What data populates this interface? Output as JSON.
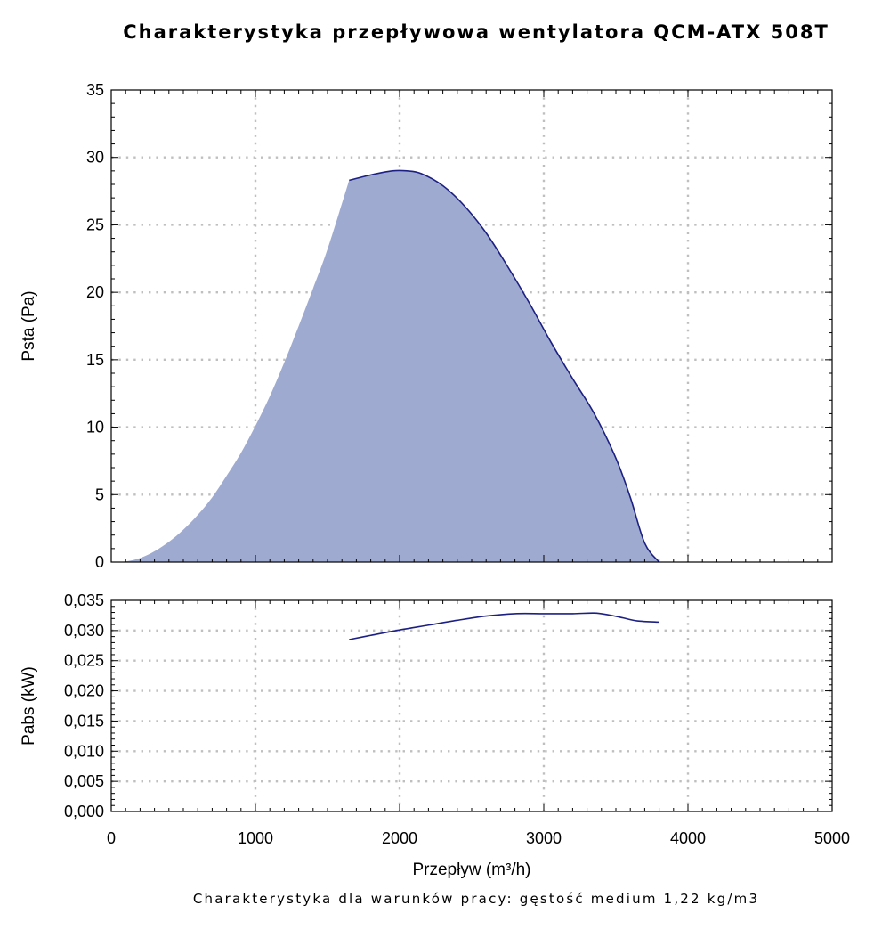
{
  "title": "Charakterystyka przepływowa wentylatora QCM-ATX 508T",
  "footnote": "Charakterystyka dla warunków pracy: gęstość medium 1,22 kg/m3",
  "colors": {
    "fill": "#9faad0",
    "line": "#1c2083",
    "grid": "#bfbfbf"
  },
  "chart_data": [
    {
      "type": "area",
      "xlabel": "",
      "ylabel": "Psta (Pa)",
      "xlim": [
        0,
        5000
      ],
      "ylim": [
        0,
        35
      ],
      "grid": true,
      "x_ticks": [
        0,
        1000,
        2000,
        3000,
        4000,
        5000
      ],
      "y_ticks": [
        0,
        5,
        10,
        15,
        20,
        25,
        30,
        35
      ],
      "y_tick_labels": [
        "0",
        "5",
        "10",
        "15",
        "20",
        "25",
        "30",
        "35"
      ],
      "series": [
        {
          "x": [
            1650,
            1800,
            1950,
            2050,
            2150,
            2300,
            2450,
            2600,
            2750,
            2900,
            3050,
            3200,
            3350,
            3500,
            3600,
            3700,
            3800
          ],
          "values": [
            28.3,
            28.7,
            29.0,
            29.0,
            28.8,
            27.9,
            26.4,
            24.4,
            21.9,
            19.2,
            16.3,
            13.6,
            11.0,
            7.7,
            4.8,
            1.4,
            0.0
          ]
        }
      ],
      "envelope": {
        "x": [
          0,
          100,
          200,
          300,
          400,
          500,
          600,
          700,
          800,
          900,
          1000,
          1100,
          1200,
          1300,
          1400,
          1500,
          1650
        ],
        "values": [
          0.0,
          0.05,
          0.3,
          0.8,
          1.5,
          2.4,
          3.5,
          4.8,
          6.4,
          8.1,
          10.1,
          12.3,
          14.8,
          17.5,
          20.3,
          23.2,
          28.3
        ]
      }
    },
    {
      "type": "line",
      "xlabel": "Przepływ (m³/h)",
      "ylabel": "Pabs (kW)",
      "xlim": [
        0,
        5000
      ],
      "ylim": [
        0,
        0.035
      ],
      "grid": true,
      "x_ticks": [
        0,
        1000,
        2000,
        3000,
        4000,
        5000
      ],
      "x_tick_labels": [
        "0",
        "1000",
        "2000",
        "3000",
        "4000",
        "5000"
      ],
      "y_ticks": [
        0,
        0.005,
        0.01,
        0.015,
        0.02,
        0.025,
        0.03,
        0.035
      ],
      "y_tick_labels": [
        "0,000",
        "0,005",
        "0,010",
        "0,015",
        "0,020",
        "0,025",
        "0,030",
        "0,035"
      ],
      "series": [
        {
          "x": [
            1650,
            1800,
            2000,
            2200,
            2400,
            2600,
            2800,
            3000,
            3200,
            3350,
            3450,
            3550,
            3650,
            3800
          ],
          "values": [
            0.0285,
            0.0292,
            0.0301,
            0.0309,
            0.0317,
            0.0324,
            0.0328,
            0.0328,
            0.0328,
            0.0329,
            0.0326,
            0.0321,
            0.0316,
            0.0314
          ]
        }
      ]
    }
  ]
}
